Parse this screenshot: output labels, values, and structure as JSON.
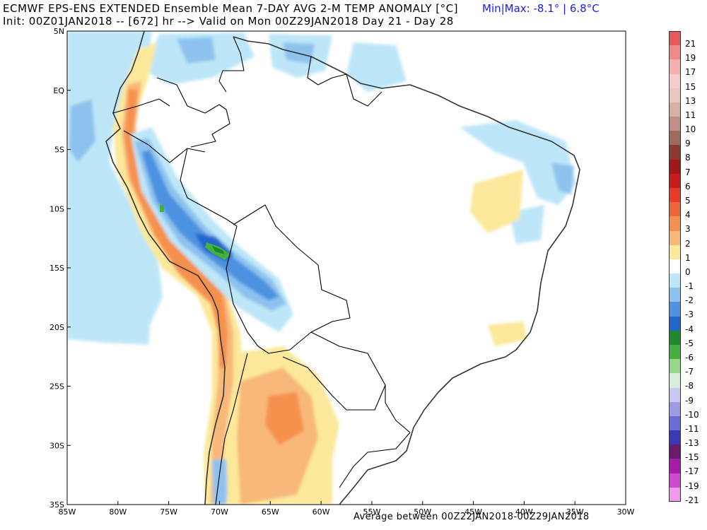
{
  "header": {
    "title_line1": "ECMWF EPS-ENS EXTENDED Ensemble Mean 7-DAY AVG 2-M TEMP ANOMALY [°C]",
    "title_line2": "Init: 00Z01JAN2018 -- [672] hr --> Valid on Mon 00Z29JAN2018  Day 21 - Day 28",
    "minmax": "Min|Max: -8.1° | 6.8°C"
  },
  "footer": {
    "average_note": "Average between 00Z22JAN2018-00Z29JAN2018"
  },
  "map": {
    "lon_min": -85,
    "lon_max": -30,
    "lat_min": -35,
    "lat_max": 5,
    "lat_ticks": [
      {
        "lat": 5,
        "label": "5N"
      },
      {
        "lat": 0,
        "label": "EQ"
      },
      {
        "lat": -5,
        "label": "5S"
      },
      {
        "lat": -10,
        "label": "10S"
      },
      {
        "lat": -15,
        "label": "15S"
      },
      {
        "lat": -20,
        "label": "20S"
      },
      {
        "lat": -25,
        "label": "25S"
      },
      {
        "lat": -30,
        "label": "30S"
      },
      {
        "lat": -35,
        "label": "35S"
      }
    ],
    "lon_ticks": [
      {
        "lon": -85,
        "label": "85W"
      },
      {
        "lon": -80,
        "label": "80W"
      },
      {
        "lon": -75,
        "label": "75W"
      },
      {
        "lon": -70,
        "label": "70W"
      },
      {
        "lon": -65,
        "label": "65W"
      },
      {
        "lon": -60,
        "label": "60W"
      },
      {
        "lon": -55,
        "label": "55W"
      },
      {
        "lon": -50,
        "label": "50W"
      },
      {
        "lon": -45,
        "label": "45W"
      },
      {
        "lon": -40,
        "label": "40W"
      },
      {
        "lon": -35,
        "label": "35W"
      },
      {
        "lon": -30,
        "label": "30W"
      }
    ],
    "extremes": {
      "min": -8.1,
      "max": 6.8
    },
    "coast_color": "#333333",
    "border_color": "#000000"
  },
  "colorbar": {
    "levels": [
      {
        "label": "21",
        "color": "#e85a5a"
      },
      {
        "label": "19",
        "color": "#f08a8a"
      },
      {
        "label": "17",
        "color": "#f5b0b0"
      },
      {
        "label": "15",
        "color": "#f8cccc"
      },
      {
        "label": "13",
        "color": "#e6c8c0"
      },
      {
        "label": "11",
        "color": "#d6b0a6"
      },
      {
        "label": "10",
        "color": "#c09088"
      },
      {
        "label": "9",
        "color": "#a06a5e"
      },
      {
        "label": "8",
        "color": "#8a3a2e"
      },
      {
        "label": "7",
        "color": "#a01818"
      },
      {
        "label": "6",
        "color": "#c81c1c"
      },
      {
        "label": "5",
        "color": "#e83a28"
      },
      {
        "label": "4",
        "color": "#f0643a"
      },
      {
        "label": "3",
        "color": "#f5914e"
      },
      {
        "label": "2",
        "color": "#f8b87a"
      },
      {
        "label": "1",
        "color": "#fbe89a"
      },
      {
        "label": "0",
        "color": "#ffffff"
      },
      {
        "label": "-1",
        "color": "#bde6f8"
      },
      {
        "label": "-2",
        "color": "#8ec2ee"
      },
      {
        "label": "-3",
        "color": "#4e92e0"
      },
      {
        "label": "-4",
        "color": "#2266cc"
      },
      {
        "label": "-5",
        "color": "#1c8a2c"
      },
      {
        "label": "-6",
        "color": "#46b03e"
      },
      {
        "label": "-7",
        "color": "#96d88a"
      },
      {
        "label": "-8",
        "color": "#d8eed8"
      },
      {
        "label": "-9",
        "color": "#c8c8f0"
      },
      {
        "label": "-10",
        "color": "#9c9ce6"
      },
      {
        "label": "-11",
        "color": "#6a6ad8"
      },
      {
        "label": "-13",
        "color": "#3a3ab8"
      },
      {
        "label": "-15",
        "color": "#6a1a6a"
      },
      {
        "label": "-17",
        "color": "#a81aa8"
      },
      {
        "label": "-19",
        "color": "#d04ad0"
      },
      {
        "label": "-21",
        "color": "#ee9aee"
      }
    ]
  }
}
